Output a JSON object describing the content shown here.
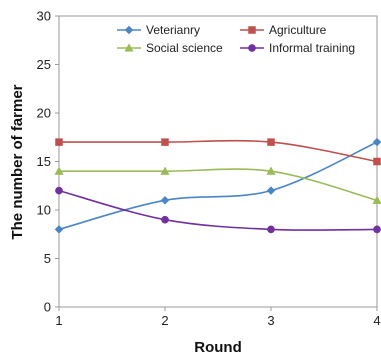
{
  "chart_data": {
    "type": "line",
    "title": "",
    "xlabel": "Round",
    "ylabel": "The number of farmer",
    "categories": [
      "1",
      "2",
      "3",
      "4"
    ],
    "ylim": [
      0,
      30
    ],
    "yticks": [
      "0",
      "5",
      "10",
      "15",
      "20",
      "25",
      "30"
    ],
    "grid": false,
    "legend_position": "top",
    "smooth": true,
    "series": [
      {
        "name": "Veterianry",
        "values": [
          8,
          11,
          12,
          17
        ],
        "color": "#4a86c5",
        "marker": "diamond"
      },
      {
        "name": "Agriculture",
        "values": [
          17,
          17,
          17,
          15
        ],
        "color": "#c0504d",
        "marker": "square"
      },
      {
        "name": "Social science",
        "values": [
          14,
          14,
          14,
          11
        ],
        "color": "#9bbb59",
        "marker": "triangle"
      },
      {
        "name": "Informal training",
        "values": [
          12,
          9,
          8,
          8
        ],
        "color": "#7030a0",
        "marker": "circle"
      }
    ]
  }
}
